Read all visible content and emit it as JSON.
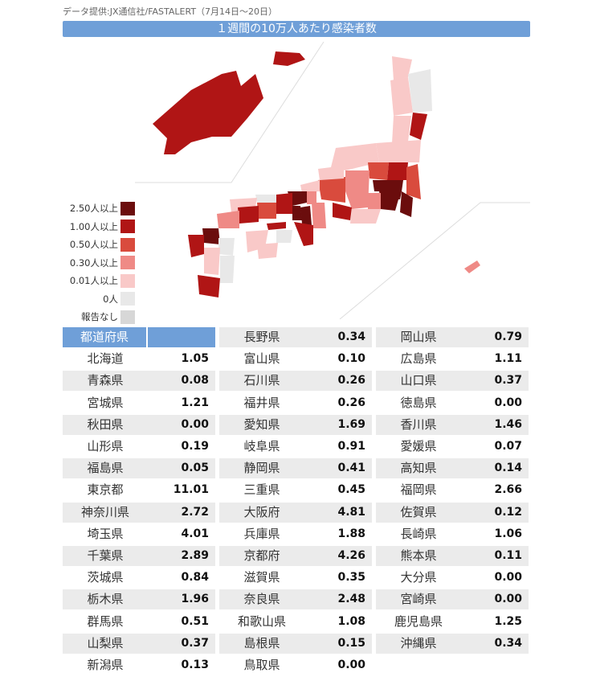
{
  "source": "データ提供:JX通信社/FASTALERT（7月14日～20日）",
  "title": "１週間の10万人あたり感染者数",
  "legend": [
    {
      "label": "2.50人以上",
      "color": "#6b0d0d"
    },
    {
      "label": "1.00人以上",
      "color": "#b01515"
    },
    {
      "label": "0.50人以上",
      "color": "#d94b3d"
    },
    {
      "label": "0.30人以上",
      "color": "#ef8a86"
    },
    {
      "label": "0.01人以上",
      "color": "#f9c9c8"
    },
    {
      "label": "0人",
      "color": "#e8e8e8"
    },
    {
      "label": "報告なし",
      "color": "#d7d7d7"
    }
  ],
  "table": {
    "header": "都道府県",
    "col1": [
      {
        "name": "北海道",
        "value": "1.05"
      },
      {
        "name": "青森県",
        "value": "0.08"
      },
      {
        "name": "宮城県",
        "value": "1.21"
      },
      {
        "name": "秋田県",
        "value": "0.00"
      },
      {
        "name": "山形県",
        "value": "0.19"
      },
      {
        "name": "福島県",
        "value": "0.05"
      },
      {
        "name": "東京都",
        "value": "11.01"
      },
      {
        "name": "神奈川県",
        "value": "2.72"
      },
      {
        "name": "埼玉県",
        "value": "4.01"
      },
      {
        "name": "千葉県",
        "value": "2.89"
      },
      {
        "name": "茨城県",
        "value": "0.84"
      },
      {
        "name": "栃木県",
        "value": "1.96"
      },
      {
        "name": "群馬県",
        "value": "0.51"
      },
      {
        "name": "山梨県",
        "value": "0.37"
      },
      {
        "name": "新潟県",
        "value": "0.13"
      }
    ],
    "col2": [
      {
        "name": "長野県",
        "value": "0.34"
      },
      {
        "name": "富山県",
        "value": "0.10"
      },
      {
        "name": "石川県",
        "value": "0.26"
      },
      {
        "name": "福井県",
        "value": "0.26"
      },
      {
        "name": "愛知県",
        "value": "1.69"
      },
      {
        "name": "岐阜県",
        "value": "0.91"
      },
      {
        "name": "静岡県",
        "value": "0.41"
      },
      {
        "name": "三重県",
        "value": "0.45"
      },
      {
        "name": "大阪府",
        "value": "4.81"
      },
      {
        "name": "兵庫県",
        "value": "1.88"
      },
      {
        "name": "京都府",
        "value": "4.26"
      },
      {
        "name": "滋賀県",
        "value": "0.35"
      },
      {
        "name": "奈良県",
        "value": "2.48"
      },
      {
        "name": "和歌山県",
        "value": "1.08"
      },
      {
        "name": "島根県",
        "value": "0.15"
      },
      {
        "name": "鳥取県",
        "value": "0.00"
      }
    ],
    "col3": [
      {
        "name": "岡山県",
        "value": "0.79"
      },
      {
        "name": "広島県",
        "value": "1.11"
      },
      {
        "name": "山口県",
        "value": "0.37"
      },
      {
        "name": "徳島県",
        "value": "0.00"
      },
      {
        "name": "香川県",
        "value": "1.46"
      },
      {
        "name": "愛媛県",
        "value": "0.07"
      },
      {
        "name": "高知県",
        "value": "0.14"
      },
      {
        "name": "福岡県",
        "value": "2.66"
      },
      {
        "name": "佐賀県",
        "value": "0.12"
      },
      {
        "name": "長崎県",
        "value": "1.06"
      },
      {
        "name": "熊本県",
        "value": "0.11"
      },
      {
        "name": "大分県",
        "value": "0.00"
      },
      {
        "name": "宮崎県",
        "value": "0.00"
      },
      {
        "name": "鹿児島県",
        "value": "1.25"
      },
      {
        "name": "沖縄県",
        "value": "0.34"
      }
    ]
  }
}
